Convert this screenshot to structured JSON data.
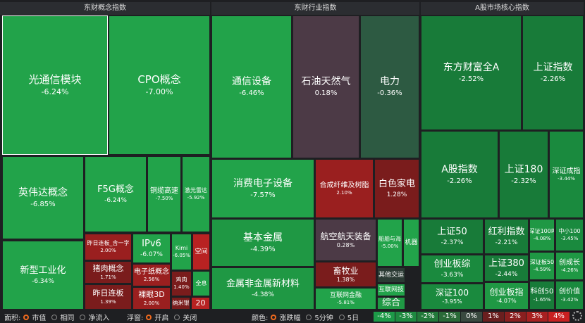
{
  "panels": [
    {
      "title": "东财概念指数",
      "tiles": [
        {
          "name": "光通信模块",
          "change": "-6.24%"
        },
        {
          "name": "CPO概念",
          "change": "-7.00%"
        },
        {
          "name": "英伟达概念",
          "change": "-6.85%"
        },
        {
          "name": "F5G概念",
          "change": "-6.24%"
        },
        {
          "name": "铜缆高速",
          "change": "-7.50%"
        },
        {
          "name": "激光雷达",
          "change": "-5.92%"
        },
        {
          "name": "新型工业化",
          "change": "-6.34%"
        },
        {
          "name": "昨日连板_含一字",
          "change": "2.00%"
        },
        {
          "name": "猪肉概念",
          "change": "1.71%"
        },
        {
          "name": "昨日连板",
          "change": "1.39%"
        },
        {
          "name": "IPv6",
          "change": "-6.07%"
        },
        {
          "name": "电子纸概念",
          "change": "2.56%"
        },
        {
          "name": "裸眼3D",
          "change": "2.00%"
        },
        {
          "name": "Kimi",
          "change": "-6.05%"
        },
        {
          "name": "空间"
        },
        {
          "name": "鸡肉",
          "change": "1.40%"
        },
        {
          "name": "全息"
        },
        {
          "name": "纳米银"
        },
        {
          "name": "20"
        }
      ]
    },
    {
      "title": "东财行业指数",
      "tiles": [
        {
          "name": "通信设备",
          "change": "-6.46%"
        },
        {
          "name": "石油天然气",
          "change": "0.18%"
        },
        {
          "name": "电力",
          "change": "-0.36%"
        },
        {
          "name": "消费电子设备",
          "change": "-7.57%"
        },
        {
          "name": "合成纤维及树脂",
          "change": "2.10%"
        },
        {
          "name": "白色家电",
          "change": "1.28%"
        },
        {
          "name": "基本金属",
          "change": "-4.39%"
        },
        {
          "name": "金属非金属新材料",
          "change": "-4.38%"
        },
        {
          "name": "航空航天装备",
          "change": "0.28%"
        },
        {
          "name": "船舶与海",
          "change": "-5.00%"
        },
        {
          "name": "机器"
        },
        {
          "name": "畜牧业",
          "change": "1.38%"
        },
        {
          "name": "互联网金融",
          "change": "-5.81%"
        },
        {
          "name": "其他交运"
        },
        {
          "name": "互联网技"
        },
        {
          "name": "综合"
        }
      ]
    },
    {
      "title": "A股市场核心指数",
      "tiles": [
        {
          "name": "东方财富全A",
          "change": "-2.52%"
        },
        {
          "name": "上证指数",
          "change": "-2.26%"
        },
        {
          "name": "A股指数",
          "change": "-2.26%"
        },
        {
          "name": "上证180",
          "change": "-2.32%"
        },
        {
          "name": "深证成指",
          "change": "-3.44%"
        },
        {
          "name": "上证50",
          "change": "-2.37%"
        },
        {
          "name": "创业板综",
          "change": "-3.63%"
        },
        {
          "name": "深证100",
          "change": "-3.95%"
        },
        {
          "name": "红利指数",
          "change": "-2.21%"
        },
        {
          "name": "上证380",
          "change": "-2.44%"
        },
        {
          "name": "创业板指",
          "change": "-4.07%"
        },
        {
          "name": "深证100R",
          "change": "-4.08%"
        },
        {
          "name": "中小100",
          "change": "-3.45%"
        },
        {
          "name": "深证板50",
          "change": "-4.59%"
        },
        {
          "name": "创成长",
          "change": "-4.26%"
        },
        {
          "name": "科创50",
          "change": "-1.65%"
        },
        {
          "name": "创价值",
          "change": "-3.42%"
        }
      ]
    }
  ],
  "controls": {
    "area": {
      "label": "面积:",
      "options": [
        "市值",
        "相同",
        "净流入"
      ]
    },
    "popup": {
      "label": "浮窗:",
      "options": [
        "开启",
        "关闭"
      ]
    },
    "color": {
      "label": "颜色:",
      "options": [
        "涨跌幅",
        "5分钟",
        "5日"
      ]
    },
    "scale": [
      "-4%",
      "-3%",
      "-2%",
      "-1%",
      "0%",
      "1%",
      "2%",
      "3%",
      "4%"
    ]
  }
}
